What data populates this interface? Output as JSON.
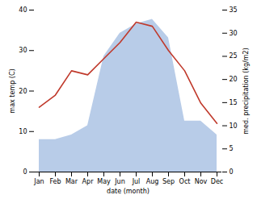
{
  "chart_data": {
    "type": "line",
    "categories": [
      "Jan",
      "Feb",
      "Mar",
      "Apr",
      "May",
      "Jun",
      "Jul",
      "Aug",
      "Sep",
      "Oct",
      "Nov",
      "Dec"
    ],
    "xlabel": "date (month)",
    "ylabel": "max temp (C)",
    "y2label": "med. precipitation (kg/m2)",
    "series": [
      {
        "type": "area",
        "axis": "y2",
        "color": "#b8cce8",
        "values": [
          7,
          7,
          8,
          10,
          25,
          30,
          32,
          33,
          29,
          11,
          11,
          8
        ]
      },
      {
        "type": "line",
        "color": "#c0392b",
        "values": [
          16,
          19,
          25,
          24,
          28,
          32,
          37,
          36,
          30,
          25,
          17,
          12
        ]
      }
    ],
    "ylim": [
      0,
      40
    ],
    "yticks": [
      0,
      10,
      20,
      30,
      40
    ],
    "y2lim": [
      0,
      35
    ],
    "y2ticks": [
      0,
      5,
      10,
      15,
      20,
      25,
      30,
      35
    ],
    "grid": false
  }
}
